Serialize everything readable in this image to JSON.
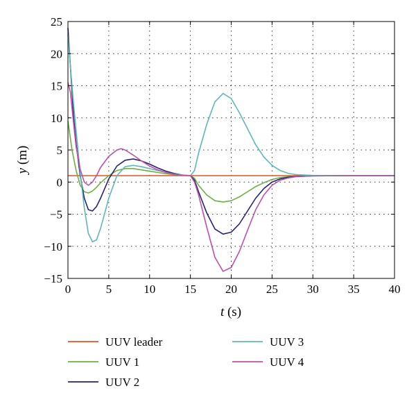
{
  "chart_data": {
    "type": "line",
    "xlabel": {
      "var": "t",
      "unit": " (s)"
    },
    "ylabel": {
      "var": "y",
      "unit": " (m)"
    },
    "xlim": [
      0,
      40
    ],
    "ylim": [
      -15,
      25
    ],
    "xticks": [
      0,
      5,
      10,
      15,
      20,
      25,
      30,
      35,
      40
    ],
    "yticks": [
      -15,
      -10,
      -5,
      0,
      5,
      10,
      15,
      20,
      25
    ],
    "grid": "dotted",
    "legend_placement": "below",
    "series": [
      {
        "name": "UUV leader",
        "color": "#e0541e",
        "points": [
          [
            0,
            1
          ],
          [
            40,
            1
          ]
        ]
      },
      {
        "name": "UUV 1",
        "color": "#6ab23e",
        "points": [
          [
            0,
            9.5
          ],
          [
            0.5,
            5
          ],
          [
            1,
            1.8
          ],
          [
            1.5,
            -0.5
          ],
          [
            2,
            -1.5
          ],
          [
            2.5,
            -1.7
          ],
          [
            3,
            -1.4
          ],
          [
            3.5,
            -0.8
          ],
          [
            4,
            -0.1
          ],
          [
            5,
            1
          ],
          [
            6,
            1.8
          ],
          [
            7,
            2.1
          ],
          [
            8,
            2.1
          ],
          [
            9,
            1.9
          ],
          [
            10,
            1.7
          ],
          [
            11,
            1.5
          ],
          [
            12,
            1.3
          ],
          [
            13,
            1.15
          ],
          [
            14,
            1.05
          ],
          [
            15,
            1
          ],
          [
            15.5,
            0.6
          ],
          [
            16,
            -0.5
          ],
          [
            17,
            -2
          ],
          [
            18,
            -2.9
          ],
          [
            19,
            -3.1
          ],
          [
            20,
            -2.9
          ],
          [
            21,
            -2.3
          ],
          [
            22,
            -1.5
          ],
          [
            23,
            -0.7
          ],
          [
            24,
            -0.1
          ],
          [
            25,
            0.4
          ],
          [
            26,
            0.7
          ],
          [
            27,
            0.85
          ],
          [
            28,
            0.93
          ],
          [
            30,
            0.98
          ],
          [
            35,
            1
          ],
          [
            40,
            1
          ]
        ]
      },
      {
        "name": "UUV 2",
        "color": "#262178",
        "points": [
          [
            0,
            24
          ],
          [
            0.3,
            18
          ],
          [
            0.7,
            10
          ],
          [
            1,
            6
          ],
          [
            1.5,
            1
          ],
          [
            2,
            -2.5
          ],
          [
            2.5,
            -4.3
          ],
          [
            3,
            -4.5
          ],
          [
            3.5,
            -3.8
          ],
          [
            4,
            -2.5
          ],
          [
            5,
            0.5
          ],
          [
            6,
            2.5
          ],
          [
            7,
            3.4
          ],
          [
            8,
            3.6
          ],
          [
            9,
            3.3
          ],
          [
            10,
            2.8
          ],
          [
            11,
            2.2
          ],
          [
            12,
            1.7
          ],
          [
            13,
            1.35
          ],
          [
            14,
            1.1
          ],
          [
            15,
            1
          ],
          [
            15.5,
            0.3
          ],
          [
            16,
            -1.5
          ],
          [
            17,
            -4.8
          ],
          [
            18,
            -7.3
          ],
          [
            19,
            -8.1
          ],
          [
            20,
            -7.8
          ],
          [
            21,
            -6.5
          ],
          [
            22,
            -4.5
          ],
          [
            23,
            -2.5
          ],
          [
            24,
            -1
          ],
          [
            25,
            0
          ],
          [
            26,
            0.5
          ],
          [
            27,
            0.75
          ],
          [
            28,
            0.88
          ],
          [
            30,
            0.97
          ],
          [
            35,
            1
          ],
          [
            40,
            1
          ]
        ]
      },
      {
        "name": "UUV 3",
        "color": "#5cb8b8",
        "points": [
          [
            0,
            23
          ],
          [
            0.3,
            18
          ],
          [
            0.7,
            12
          ],
          [
            1,
            8
          ],
          [
            1.5,
            1.5
          ],
          [
            2,
            -4
          ],
          [
            2.5,
            -8
          ],
          [
            3,
            -9.3
          ],
          [
            3.5,
            -9
          ],
          [
            4,
            -7.2
          ],
          [
            5,
            -2.5
          ],
          [
            6,
            1
          ],
          [
            7,
            2.4
          ],
          [
            8,
            2.6
          ],
          [
            9,
            2.4
          ],
          [
            10,
            2.1
          ],
          [
            11,
            1.8
          ],
          [
            12,
            1.5
          ],
          [
            13,
            1.25
          ],
          [
            14,
            1.1
          ],
          [
            15,
            1
          ],
          [
            15.5,
            1.8
          ],
          [
            16,
            4.5
          ],
          [
            17,
            9
          ],
          [
            18,
            12.5
          ],
          [
            19,
            13.8
          ],
          [
            20,
            13
          ],
          [
            21,
            10.8
          ],
          [
            22,
            8.3
          ],
          [
            23,
            5.8
          ],
          [
            24,
            3.9
          ],
          [
            25,
            2.6
          ],
          [
            26,
            1.8
          ],
          [
            27,
            1.35
          ],
          [
            28,
            1.15
          ],
          [
            30,
            1.03
          ],
          [
            35,
            1
          ],
          [
            40,
            1
          ]
        ]
      },
      {
        "name": "UUV 4",
        "color": "#bf4fa9",
        "points": [
          [
            0,
            15.5
          ],
          [
            0.3,
            14
          ],
          [
            0.7,
            9
          ],
          [
            1,
            5.5
          ],
          [
            1.5,
            2
          ],
          [
            2,
            0
          ],
          [
            2.5,
            -0.5
          ],
          [
            3,
            0
          ],
          [
            3.5,
            1
          ],
          [
            4,
            2.3
          ],
          [
            5,
            4
          ],
          [
            6,
            5
          ],
          [
            6.5,
            5.2
          ],
          [
            7,
            5
          ],
          [
            8,
            4.2
          ],
          [
            9,
            3.3
          ],
          [
            10,
            2.5
          ],
          [
            11,
            1.9
          ],
          [
            12,
            1.5
          ],
          [
            13,
            1.2
          ],
          [
            14,
            1.05
          ],
          [
            15,
            1
          ],
          [
            15.5,
            0
          ],
          [
            16,
            -2
          ],
          [
            17,
            -7
          ],
          [
            18,
            -11.7
          ],
          [
            19,
            -13.9
          ],
          [
            20,
            -13.3
          ],
          [
            21,
            -10.8
          ],
          [
            22,
            -7.5
          ],
          [
            23,
            -4.3
          ],
          [
            24,
            -2
          ],
          [
            25,
            -0.5
          ],
          [
            26,
            0.3
          ],
          [
            27,
            0.65
          ],
          [
            28,
            0.85
          ],
          [
            30,
            0.96
          ],
          [
            35,
            1
          ],
          [
            40,
            1
          ]
        ]
      }
    ]
  }
}
